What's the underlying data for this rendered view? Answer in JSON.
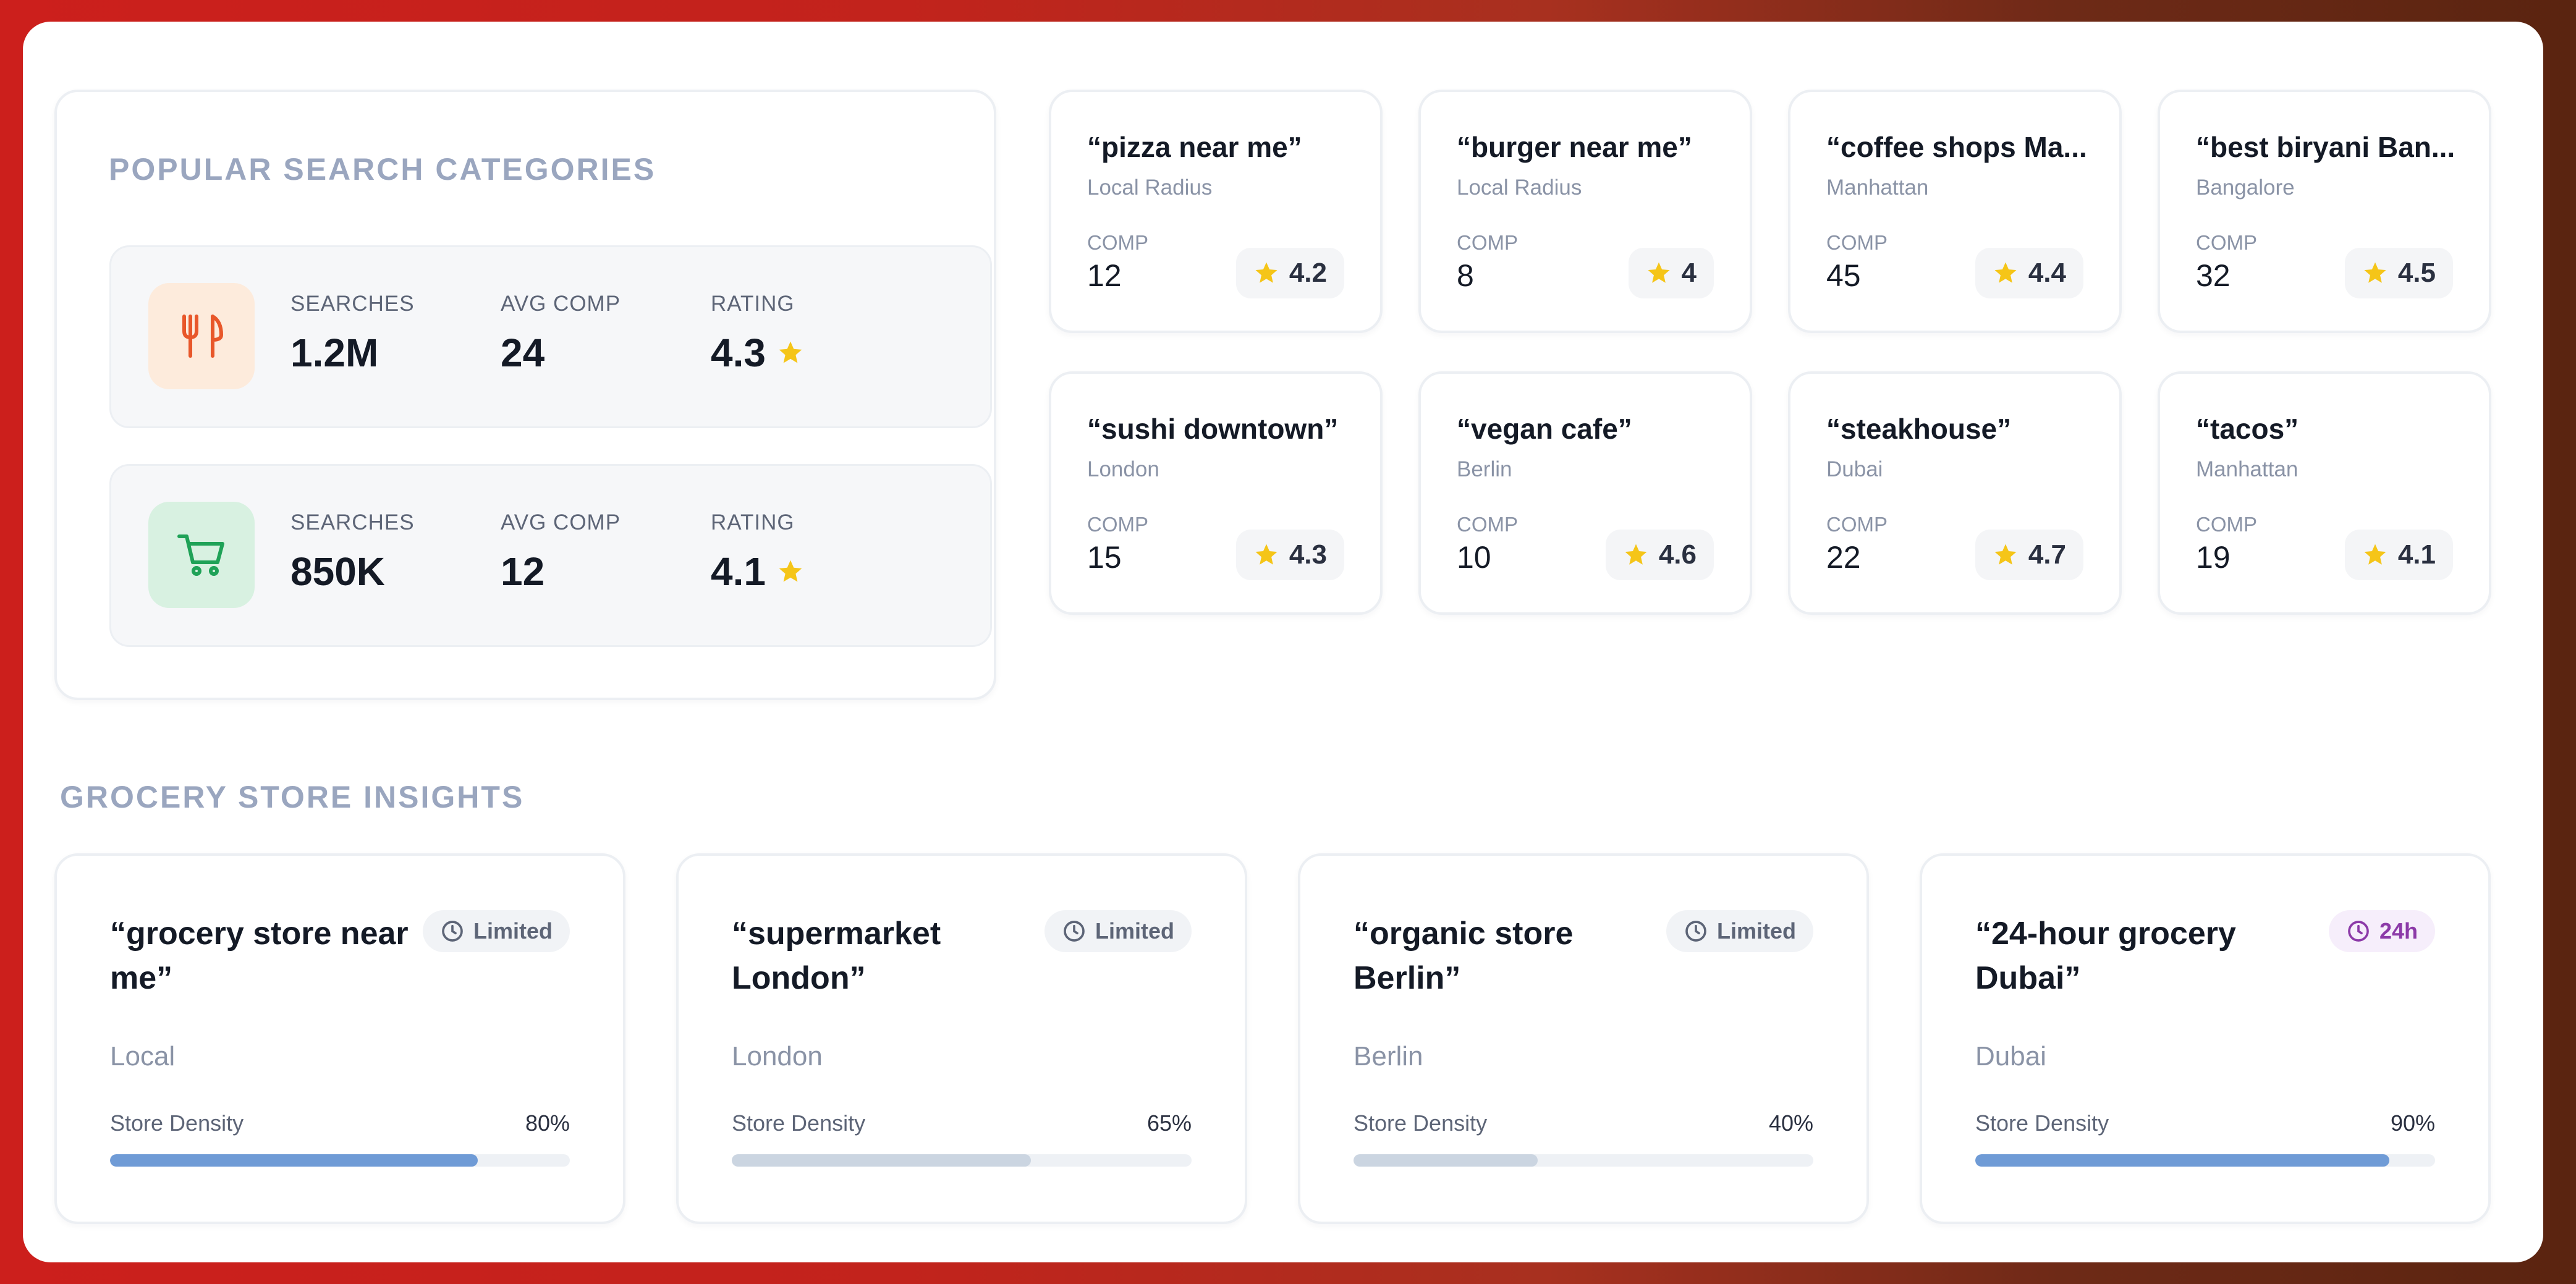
{
  "popular": {
    "title": "POPULAR SEARCH CATEGORIES",
    "rows": [
      {
        "icon": "utensils-icon",
        "icon_bg": "#fdebdc",
        "icon_color": "#e8572a",
        "searches_label": "SEARCHES",
        "searches": "1.2M",
        "avg_label": "AVG COMP",
        "avg": "24",
        "rating_label": "RATING",
        "rating": "4.3"
      },
      {
        "icon": "cart-icon",
        "icon_bg": "#d8f1e1",
        "icon_color": "#1fa257",
        "searches_label": "SEARCHES",
        "searches": "850K",
        "avg_label": "AVG COMP",
        "avg": "12",
        "rating_label": "RATING",
        "rating": "4.1"
      }
    ]
  },
  "terms": [
    {
      "title": "“pizza near me”",
      "loc": "Local Radius",
      "comp_label": "COMP",
      "comp": "12",
      "rating": "4.2"
    },
    {
      "title": "“burger near me”",
      "loc": "Local Radius",
      "comp_label": "COMP",
      "comp": "8",
      "rating": "4"
    },
    {
      "title": "“coffee shops Ma...",
      "loc": "Manhattan",
      "comp_label": "COMP",
      "comp": "45",
      "rating": "4.4"
    },
    {
      "title": "“best biryani Ban...",
      "loc": "Bangalore",
      "comp_label": "COMP",
      "comp": "32",
      "rating": "4.5"
    },
    {
      "title": "“sushi downtown”",
      "loc": "London",
      "comp_label": "COMP",
      "comp": "15",
      "rating": "4.3"
    },
    {
      "title": "“vegan cafe”",
      "loc": "Berlin",
      "comp_label": "COMP",
      "comp": "10",
      "rating": "4.6"
    },
    {
      "title": "“steakhouse”",
      "loc": "Dubai",
      "comp_label": "COMP",
      "comp": "22",
      "rating": "4.7"
    },
    {
      "title": "“tacos”",
      "loc": "Manhattan",
      "comp_label": "COMP",
      "comp": "19",
      "rating": "4.1"
    }
  ],
  "grocery": {
    "title": "GROCERY STORE INSIGHTS",
    "cards": [
      {
        "title": "“grocery store near me”",
        "badge": "Limited",
        "badge_type": "limited",
        "loc": "Local",
        "density_label": "Store Density",
        "density": "80%",
        "density_value": 0.8,
        "fill_color": "#6f9bd6"
      },
      {
        "title": "“supermarket London”",
        "badge": "Limited",
        "badge_type": "limited",
        "loc": "London",
        "density_label": "Store Density",
        "density": "65%",
        "density_value": 0.65,
        "fill_color": "#cbd5e1"
      },
      {
        "title": "“organic store Berlin”",
        "badge": "Limited",
        "badge_type": "limited",
        "loc": "Berlin",
        "density_label": "Store Density",
        "density": "40%",
        "density_value": 0.4,
        "fill_color": "#cbd5e1"
      },
      {
        "title": "“24-hour grocery Dubai”",
        "badge": "24h",
        "badge_type": "open",
        "loc": "Dubai",
        "density_label": "Store Density",
        "density": "90%",
        "density_value": 0.9,
        "fill_color": "#6f9bd6"
      }
    ]
  },
  "colors": {
    "star": "#f5c518",
    "heading": "#9aa6bf",
    "badge_limited_bg": "#f1f3f6",
    "badge_limited_fg": "#5d6577",
    "badge_24h_bg": "#f6eefb",
    "badge_24h_fg": "#8c3aa8"
  }
}
